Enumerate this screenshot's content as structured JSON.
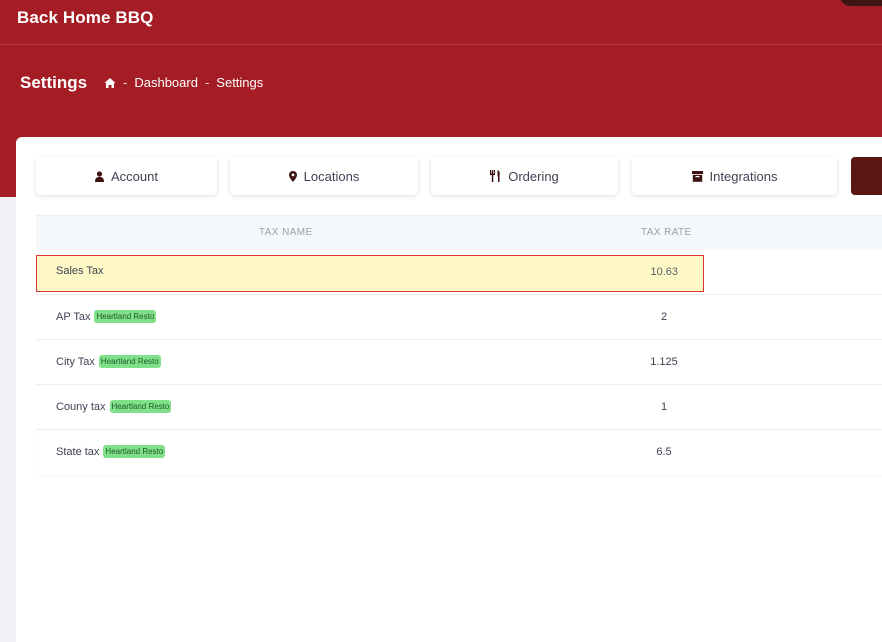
{
  "app": {
    "brand": "Back Home BBQ"
  },
  "header": {
    "page_title": "Settings",
    "breadcrumb": [
      "Dashboard",
      "Settings"
    ]
  },
  "tabs": [
    {
      "label": "Account",
      "icon": "user-icon"
    },
    {
      "label": "Locations",
      "icon": "map-marker-icon"
    },
    {
      "label": "Ordering",
      "icon": "utensils-icon"
    },
    {
      "label": "Integrations",
      "icon": "archive-box-icon"
    }
  ],
  "table": {
    "columns": [
      "TAX NAME",
      "TAX RATE"
    ],
    "rows": [
      {
        "name": "Sales Tax",
        "rate": "10.63",
        "badge": null,
        "selected": true
      },
      {
        "name": "AP Tax",
        "rate": "2",
        "badge": "Heartland Resto"
      },
      {
        "name": "City Tax",
        "rate": "1.125",
        "badge": "Heartland Resto"
      },
      {
        "name": "Couny tax",
        "rate": "1",
        "badge": "Heartland Resto"
      },
      {
        "name": "State tax",
        "rate": "6.5",
        "badge": "Heartland Resto"
      }
    ]
  },
  "colors": {
    "header_bg": "#a51d24",
    "active_tab": "#5c1515",
    "badge_bg": "#80e08a",
    "selection_bg": "#fef9c6",
    "selection_border": "#d93636"
  }
}
